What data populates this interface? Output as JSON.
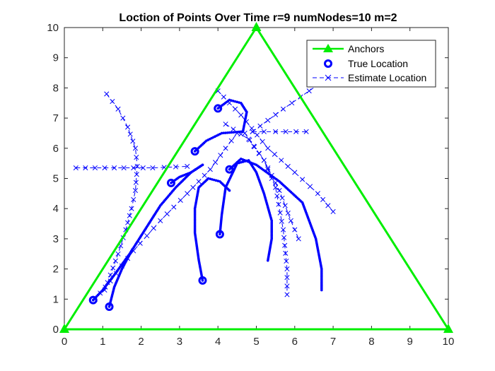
{
  "chart_data": {
    "type": "line",
    "title": "Loction of Points Over Time r=9 numNodes=10 m=2",
    "xlabel": "",
    "ylabel": "",
    "xlim": [
      0,
      10
    ],
    "ylim": [
      0,
      10
    ],
    "xticks": [
      "0",
      "1",
      "2",
      "3",
      "4",
      "5",
      "6",
      "7",
      "8",
      "9",
      "10"
    ],
    "yticks": [
      "0",
      "1",
      "2",
      "3",
      "4",
      "5",
      "6",
      "7",
      "8",
      "9",
      "10"
    ],
    "grid": false,
    "legend_position": "top-right",
    "legend": [
      "Anchors",
      "True Location",
      "Estimate Location"
    ],
    "colors": {
      "anchors": "#00ee00",
      "true": "#0000ff",
      "estimate": "#0000ff"
    },
    "anchors": {
      "name": "Anchors",
      "points": [
        [
          0,
          0
        ],
        [
          5,
          10
        ],
        [
          10,
          0
        ],
        [
          0,
          0
        ]
      ]
    },
    "true_location": {
      "name": "True Location",
      "paths": [
        [
          [
            0.75,
            0.97
          ],
          [
            1.0,
            1.3
          ],
          [
            1.3,
            1.8
          ],
          [
            1.7,
            2.5
          ],
          [
            2.1,
            3.3
          ],
          [
            2.5,
            4.1
          ],
          [
            2.9,
            4.7
          ],
          [
            3.3,
            5.2
          ],
          [
            3.6,
            5.45
          ]
        ],
        [
          [
            1.17,
            0.75
          ],
          [
            1.3,
            1.4
          ],
          [
            1.5,
            2.0
          ],
          [
            1.75,
            2.6
          ]
        ],
        [
          [
            2.78,
            4.85
          ],
          [
            3.0,
            5.05
          ],
          [
            3.3,
            5.2
          ],
          [
            3.6,
            5.45
          ]
        ],
        [
          [
            3.6,
            1.62
          ],
          [
            3.5,
            2.3
          ],
          [
            3.4,
            3.2
          ],
          [
            3.4,
            4.0
          ],
          [
            3.5,
            4.7
          ],
          [
            3.75,
            5.0
          ],
          [
            4.05,
            4.9
          ],
          [
            4.3,
            4.6
          ]
        ],
        [
          [
            4.05,
            3.15
          ],
          [
            4.1,
            3.8
          ],
          [
            4.2,
            4.7
          ],
          [
            4.5,
            5.5
          ],
          [
            4.8,
            5.6
          ],
          [
            5.0,
            5.2
          ],
          [
            5.2,
            4.5
          ],
          [
            5.4,
            3.6
          ],
          [
            5.4,
            3.0
          ],
          [
            5.3,
            2.28
          ]
        ],
        [
          [
            4.3,
            5.3
          ],
          [
            4.6,
            5.65
          ],
          [
            5.0,
            5.45
          ],
          [
            5.6,
            4.9
          ],
          [
            6.2,
            4.2
          ],
          [
            6.55,
            3.0
          ],
          [
            6.7,
            2.0
          ],
          [
            6.7,
            1.3
          ]
        ],
        [
          [
            3.4,
            5.9
          ],
          [
            3.7,
            6.25
          ],
          [
            4.1,
            6.5
          ],
          [
            4.6,
            6.55
          ],
          [
            4.65,
            6.55
          ]
        ],
        [
          [
            4.0,
            7.32
          ],
          [
            4.3,
            7.6
          ],
          [
            4.6,
            7.5
          ],
          [
            4.75,
            7.2
          ],
          [
            4.65,
            6.55
          ]
        ]
      ]
    },
    "estimate_location": {
      "name": "Estimate Location",
      "paths": [
        [
          [
            1.1,
            7.8
          ],
          [
            1.4,
            7.3
          ],
          [
            1.65,
            6.7
          ],
          [
            1.85,
            6.0
          ],
          [
            1.9,
            5.4
          ],
          [
            1.85,
            4.6
          ],
          [
            1.75,
            4.0
          ],
          [
            1.6,
            3.3
          ],
          [
            1.4,
            2.5
          ],
          [
            1.2,
            1.8
          ],
          [
            1.05,
            1.3
          ]
        ],
        [
          [
            0.3,
            5.35
          ],
          [
            1.3,
            5.35
          ],
          [
            2.3,
            5.35
          ],
          [
            3.2,
            5.4
          ]
        ],
        [
          [
            0.8,
            1.0
          ],
          [
            1.2,
            1.6
          ],
          [
            1.8,
            2.6
          ],
          [
            2.5,
            3.6
          ],
          [
            3.2,
            4.5
          ],
          [
            3.8,
            5.3
          ],
          [
            4.2,
            6.0
          ],
          [
            4.5,
            6.5
          ]
        ],
        [
          [
            4.0,
            7.9
          ],
          [
            4.6,
            7.1
          ],
          [
            5.3,
            6.0
          ],
          [
            6.0,
            5.2
          ],
          [
            6.6,
            4.5
          ],
          [
            7.0,
            3.9
          ]
        ],
        [
          [
            4.2,
            6.8
          ],
          [
            4.8,
            6.3
          ],
          [
            5.2,
            5.6
          ],
          [
            5.6,
            4.6
          ],
          [
            5.9,
            3.6
          ],
          [
            6.1,
            3.0
          ]
        ],
        [
          [
            4.7,
            6.5
          ],
          [
            5.2,
            5.6
          ],
          [
            5.5,
            4.7
          ],
          [
            5.7,
            3.3
          ],
          [
            5.8,
            2.0
          ],
          [
            5.8,
            1.15
          ]
        ],
        [
          [
            4.9,
            6.55
          ],
          [
            5.5,
            6.55
          ],
          [
            6.3,
            6.55
          ]
        ],
        [
          [
            4.9,
            6.55
          ],
          [
            5.7,
            7.3
          ],
          [
            6.6,
            8.1
          ],
          [
            7.5,
            8.7
          ]
        ]
      ]
    }
  }
}
